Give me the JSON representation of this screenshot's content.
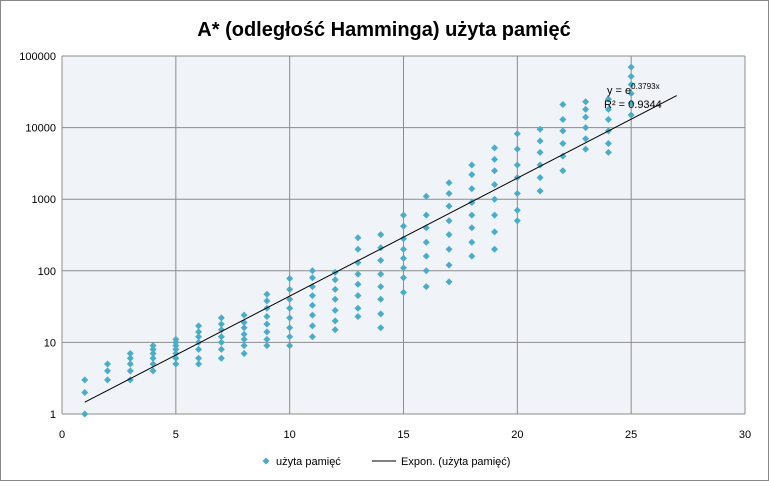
{
  "chart_data": {
    "type": "scatter",
    "title": "A* (odległość Hamminga) użyta pamięć",
    "xlim": [
      0,
      30
    ],
    "xticks": [
      0,
      5,
      10,
      15,
      20,
      25,
      30
    ],
    "ylim": [
      1,
      100000
    ],
    "yticks": [
      1,
      10,
      100,
      1000,
      10000,
      100000
    ],
    "log_y": true,
    "grid": true,
    "legend": "bottom",
    "annotations": [
      "y = e",
      "0.3793x",
      "R² = 0.9344"
    ],
    "series": [
      {
        "name": "użyta pamięć",
        "color": "#4bacc6",
        "x": [
          1,
          1,
          1,
          2,
          2,
          2,
          3,
          3,
          3,
          3,
          3,
          4,
          4,
          4,
          4,
          4,
          4,
          5,
          5,
          5,
          5,
          5,
          5,
          5,
          6,
          6,
          6,
          6,
          6,
          6,
          6,
          7,
          7,
          7,
          7,
          7,
          7,
          7,
          8,
          8,
          8,
          8,
          8,
          8,
          8,
          9,
          9,
          9,
          9,
          9,
          9,
          9,
          9,
          10,
          10,
          10,
          10,
          10,
          10,
          10,
          10,
          11,
          11,
          11,
          11,
          11,
          11,
          11,
          11,
          12,
          12,
          12,
          12,
          12,
          12,
          12,
          13,
          13,
          13,
          13,
          13,
          13,
          13,
          13,
          14,
          14,
          14,
          14,
          14,
          14,
          14,
          14,
          15,
          15,
          15,
          15,
          15,
          15,
          15,
          15,
          16,
          16,
          16,
          16,
          16,
          16,
          16,
          17,
          17,
          17,
          17,
          17,
          17,
          17,
          17,
          18,
          18,
          18,
          18,
          18,
          18,
          18,
          18,
          19,
          19,
          19,
          19,
          19,
          19,
          19,
          19,
          20,
          20,
          20,
          20,
          20,
          20,
          20,
          21,
          21,
          21,
          21,
          21,
          21,
          22,
          22,
          22,
          22,
          22,
          22,
          23,
          23,
          23,
          23,
          23,
          23,
          24,
          24,
          24,
          24,
          24,
          24,
          25,
          25,
          25,
          25,
          25,
          25
        ],
        "values": [
          1,
          2,
          3,
          3,
          4,
          5,
          3,
          4,
          5,
          6,
          7,
          4,
          5,
          6,
          7,
          8,
          9,
          5,
          6,
          7,
          8,
          9,
          10,
          11,
          5,
          6,
          8,
          10,
          12,
          14,
          17,
          6,
          8,
          10,
          12,
          15,
          18,
          22,
          7,
          9,
          11,
          13,
          16,
          19,
          24,
          9,
          11,
          14,
          18,
          23,
          30,
          38,
          47,
          9,
          12,
          16,
          22,
          30,
          40,
          55,
          78,
          12,
          17,
          24,
          33,
          45,
          60,
          80,
          100,
          15,
          20,
          28,
          40,
          55,
          75,
          95,
          23,
          30,
          45,
          65,
          90,
          130,
          200,
          290,
          16,
          25,
          40,
          60,
          90,
          140,
          210,
          320,
          50,
          80,
          110,
          150,
          200,
          280,
          420,
          600,
          60,
          100,
          160,
          250,
          400,
          600,
          1100,
          70,
          120,
          200,
          320,
          500,
          800,
          1200,
          1700,
          160,
          250,
          400,
          600,
          900,
          1400,
          2200,
          3000,
          200,
          350,
          600,
          1000,
          1600,
          2500,
          3600,
          5200,
          500,
          700,
          1200,
          2000,
          3000,
          5000,
          8200,
          1300,
          2000,
          3000,
          4500,
          6500,
          9500,
          2500,
          4000,
          6000,
          9000,
          13000,
          21000,
          5000,
          7000,
          10000,
          14000,
          18000,
          23000,
          4500,
          6000,
          9000,
          13000,
          18000,
          25000,
          15000,
          22000,
          30000,
          40000,
          52000,
          70000
        ]
      },
      {
        "name": "Expon. (użyta pamięć)",
        "color": "#000000",
        "type": "line",
        "x": [
          1,
          27
        ],
        "values": [
          1.46,
          28000
        ]
      }
    ]
  }
}
